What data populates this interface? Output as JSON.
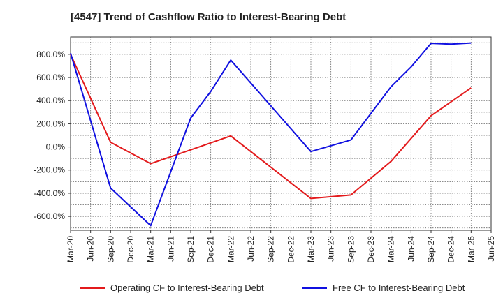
{
  "chart_data": {
    "type": "line",
    "title": "[4547]  Trend of Cashflow Ratio to Interest-Bearing Debt",
    "xlabel": "",
    "ylabel": "",
    "x": [
      "Mar-20",
      "Jun-20",
      "Sep-20",
      "Dec-20",
      "Mar-21",
      "Jun-21",
      "Sep-21",
      "Dec-21",
      "Mar-22",
      "Jun-22",
      "Sep-22",
      "Dec-22",
      "Mar-23",
      "Jun-23",
      "Sep-23",
      "Dec-23",
      "Mar-24",
      "Jun-24",
      "Sep-24",
      "Dec-24",
      "Mar-25",
      "Jun-25"
    ],
    "ylim": [
      -720,
      950
    ],
    "yticks": [
      -600,
      -400,
      -200,
      0,
      200,
      400,
      600,
      800
    ],
    "ytick_labels": [
      "-600.0%",
      "-400.0%",
      "-200.0%",
      "0.0%",
      "200.0%",
      "400.0%",
      "600.0%",
      "800.0%"
    ],
    "grid": true,
    "legend_position": "bottom",
    "series": [
      {
        "name": "Operating CF to Interest-Bearing Debt",
        "color": "#e31a1c",
        "values": [
          800,
          null,
          40,
          null,
          -145,
          null,
          null,
          null,
          95,
          null,
          null,
          null,
          -445,
          null,
          -415,
          null,
          -125,
          null,
          270,
          null,
          510,
          null
        ]
      },
      {
        "name": "Free CF to Interest-Bearing Debt",
        "color": "#1010e0",
        "values": [
          810,
          null,
          -355,
          null,
          -680,
          null,
          250,
          480,
          750,
          null,
          null,
          null,
          -40,
          null,
          60,
          null,
          520,
          690,
          895,
          888,
          898,
          null
        ]
      }
    ]
  }
}
